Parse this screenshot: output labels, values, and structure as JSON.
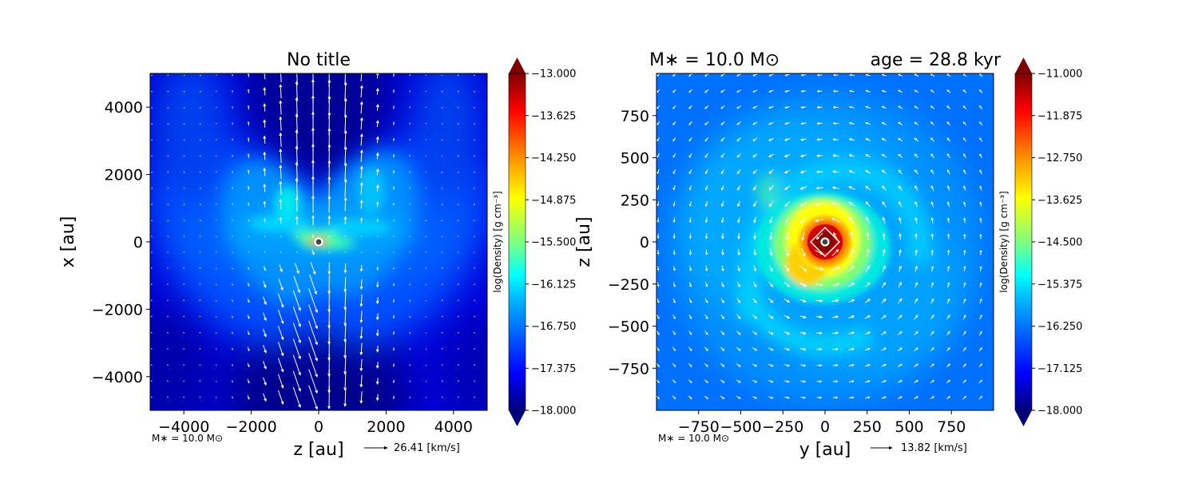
{
  "colors": {
    "jet": [
      "#00007f",
      "#0000ff",
      "#007fff",
      "#00ffff",
      "#7fff7f",
      "#ffff00",
      "#ff7f00",
      "#ff0000",
      "#7f0000"
    ],
    "arrow": "#ffffff",
    "star_ring": "#ffffff",
    "star_core": "#444444"
  },
  "chart_data": [
    {
      "type": "heatmap",
      "title": "No title",
      "xlabel": "z [au]",
      "ylabel": "x [au]",
      "xlim": [
        -5000,
        5000
      ],
      "ylim": [
        -5000,
        5000
      ],
      "xticks": [
        -4000,
        -2000,
        0,
        2000,
        4000
      ],
      "yticks": [
        -4000,
        -2000,
        0,
        2000,
        4000
      ],
      "xtick_labels": [
        "−4000",
        "−2000",
        "0",
        "2000",
        "4000"
      ],
      "ytick_labels": [
        "−4000",
        "−2000",
        "0",
        "2000",
        "4000"
      ],
      "colorbar": {
        "label": "log(Density) [g cm⁻³]",
        "range": [
          -18.0,
          -13.0
        ],
        "ticks": [
          -13.0,
          -13.625,
          -14.25,
          -14.875,
          -15.5,
          -16.125,
          -16.75,
          -17.375,
          -18.0
        ],
        "tick_labels": [
          "−13.000",
          "−13.625",
          "−14.250",
          "−14.875",
          "−15.500",
          "−16.125",
          "−16.750",
          "−17.375",
          "−18.000"
        ]
      },
      "mass_annotation": "M∗ = 10.0 M⊙",
      "velocity_key": "26.41 [km/s]",
      "field": "bipolar outflow: dense torus along z = 0 with lobes extending to |x| ≈ 1500 au",
      "velocity": "vertical outflow arrows, strongest near z ≈ 0 in the low-density cavities",
      "star": {
        "x": 0,
        "y": 0
      }
    },
    {
      "type": "heatmap",
      "title": "M∗ = 10.0 M⊙",
      "title_right": "age = 28.8 kyr",
      "xlabel": "y [au]",
      "ylabel": "z [au]",
      "xlim": [
        -1000,
        1000
      ],
      "ylim": [
        -1000,
        1000
      ],
      "xticks": [
        -750,
        -500,
        -250,
        0,
        250,
        500,
        750
      ],
      "yticks": [
        -750,
        -500,
        -250,
        0,
        250,
        500,
        750
      ],
      "xtick_labels": [
        "−750",
        "−500",
        "−250",
        "0",
        "250",
        "500",
        "750"
      ],
      "ytick_labels": [
        "−750",
        "−500",
        "−250",
        "0",
        "250",
        "500",
        "750"
      ],
      "colorbar": {
        "label": "log(Density) [g cm⁻³]",
        "range": [
          -18.0,
          -11.0
        ],
        "ticks": [
          -11.0,
          -11.875,
          -12.75,
          -13.625,
          -14.5,
          -15.375,
          -16.25,
          -17.125,
          -18.0
        ],
        "tick_labels": [
          "−11.000",
          "−11.875",
          "−12.750",
          "−13.625",
          "−14.500",
          "−15.375",
          "−16.250",
          "−17.125",
          "−18.000"
        ]
      },
      "mass_annotation": "M∗ = 10.0 M⊙",
      "velocity_key": "13.82 [km/s]",
      "field": "face-on disk with spiral arms and a dense core of radius ≈ 120 au",
      "velocity": "counter-clockwise rotational flow around the star",
      "star": {
        "x": 0,
        "y": 0
      }
    }
  ]
}
